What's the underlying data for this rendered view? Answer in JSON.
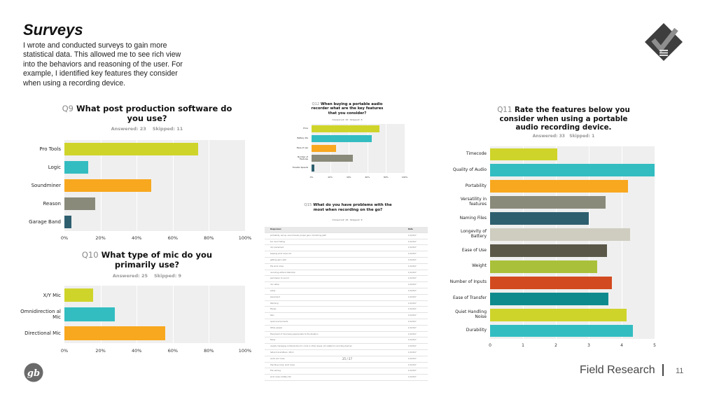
{
  "slide": {
    "title": "Surveys",
    "intro": "I wrote and conducted surveys to gain more statistical data. This allowed me to see rich view into the behaviors and reasoning of the user. For example, I identified key features they consider when using a recording device.",
    "footer_label": "Field Research",
    "page_number": "11",
    "logo_gb_text": "gb"
  },
  "colors": {
    "lime": "#cfd42a",
    "teal": "#33bdc1",
    "orange": "#f8a81f",
    "gray": "#8a8a7b",
    "navy": "#2e5f6f",
    "beige": "#cfcdc0",
    "dark": "#5a5749",
    "green": "#a9c13a",
    "red": "#d24a1f",
    "darkteal": "#0f8a8c"
  },
  "chart_data": [
    {
      "type": "bar",
      "id": "q9",
      "qnum": "Q9",
      "title": "What post production software do you use?",
      "answered": "Answered: 23",
      "skipped": "Skipped: 11",
      "categories": [
        "Pro Tools",
        "Logic",
        "Soundminer",
        "Reason",
        "Garage Band"
      ],
      "values": [
        74,
        13,
        48,
        17,
        4
      ],
      "colors": [
        "lime",
        "teal",
        "orange",
        "gray",
        "navy"
      ],
      "xlim": [
        0,
        100
      ],
      "ticks": [
        "0%",
        "20%",
        "40%",
        "60%",
        "80%",
        "100%"
      ],
      "grid": true
    },
    {
      "type": "bar",
      "id": "q10",
      "qnum": "Q10",
      "title": "What type of mic do you primarily use?",
      "answered": "Answered: 25",
      "skipped": "Skipped: 9",
      "categories": [
        "X/Y Mic",
        "Omnidirection al Mic",
        "Directional Mic"
      ],
      "values": [
        16,
        28,
        56
      ],
      "colors": [
        "lime",
        "teal",
        "orange"
      ],
      "xlim": [
        0,
        100
      ],
      "ticks": [
        "0%",
        "20%",
        "40%",
        "60%",
        "80%",
        "100%"
      ],
      "grid": true
    },
    {
      "type": "bar",
      "id": "q12",
      "qnum": "Q12",
      "title": "When buying a portable audio recorder what are the key features that you consider?",
      "answered": "Answered: 26",
      "skipped": "Skipped: 8",
      "categories": [
        "Price",
        "Battery life",
        "Ease of use",
        "Number of Features",
        "Transfer Speeds"
      ],
      "values": [
        73,
        65,
        26,
        44,
        3
      ],
      "colors": [
        "lime",
        "teal",
        "orange",
        "gray",
        "navy"
      ],
      "xlim": [
        0,
        100
      ],
      "ticks": [
        "0%",
        "20%",
        "40%",
        "60%",
        "80%",
        "100%"
      ],
      "grid": true
    },
    {
      "type": "bar",
      "id": "q11",
      "qnum": "Q11",
      "title": "Rate the features below you consider when using a portable audio recording device.",
      "answered": "Answered: 33",
      "skipped": "Skipped: 1",
      "categories": [
        "Timecode",
        "Quality of Audio",
        "Portability",
        "Versatility in features",
        "Naming Files",
        "Longevity of Battery",
        "Ease of Use",
        "Weight",
        "Number of Inputs",
        "Ease of Transfer",
        "Quiet Handling Noise",
        "Durability"
      ],
      "values": [
        2.05,
        5.0,
        4.2,
        3.5,
        3.0,
        4.25,
        3.55,
        3.25,
        3.7,
        3.6,
        4.15,
        4.35
      ],
      "colors": [
        "lime",
        "teal",
        "orange",
        "gray",
        "navy",
        "beige",
        "dark",
        "green",
        "red",
        "darkteal",
        "lime",
        "teal"
      ],
      "xlim": [
        0,
        5
      ],
      "ticks": [
        "0",
        "1",
        "2",
        "3",
        "4",
        "5"
      ],
      "grid": true
    }
  ],
  "q15": {
    "qnum": "Q15",
    "title": "What do you have problems with the most when recording on the go?",
    "answered": "Answered: 26",
    "skipped": "Skipped: 8",
    "header_responses": "Responses",
    "header_date": "Date",
    "rows": [
      "portability, set up, sound levels, proper gain, monitoring path",
      "too much falling",
      "mic placement",
      "keeping wind noise out",
      "getting gain right",
      "the wind noise",
      "recording without distortion",
      "permission to record",
      "mic setup",
      "setup",
      "placement",
      "Warming",
      "Planes",
      "Rain",
      "quiet environments",
      "Other people",
      "Placement of mics being appropriate to the situation",
      "Noise",
      "usually managing cumbersome mic cords or other issues not related to recording devices",
      "Setup transmitters / Wind",
      "audio and noise",
      "Handling noise, wind noise",
      "File naming",
      "wind noise, battery life"
    ],
    "date": "1/1/2017",
    "pager": "25 / 27"
  }
}
